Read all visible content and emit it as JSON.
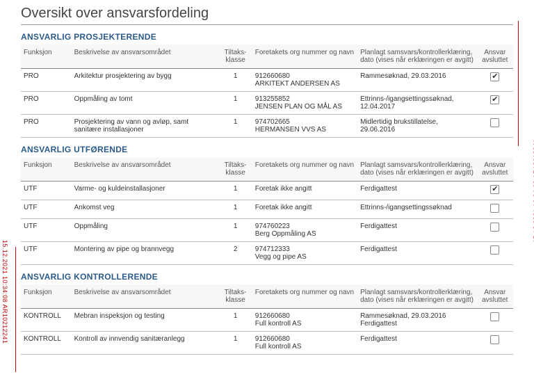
{
  "page": {
    "title": "Oversikt over ansvarsfordeling"
  },
  "stamp": "15.12.2021 10:34:08 AR10212241",
  "headers": {
    "funksjon": "Funksjon",
    "beskrivelse": "Beskrivelse av ansvarsområdet",
    "tiltaksklasse": "Tiltaks-klasse",
    "org": "Foretakets org nummer og navn",
    "planlagt": "Planlagt samsvars/kontrollerklæring, dato (vises når erklæringen er avgitt)",
    "ansvar": "Ansvar avsluttet"
  },
  "sections": [
    {
      "title": "ANSVARLIG PROSJEKTERENDE",
      "rows": [
        {
          "funksjon": "PRO",
          "beskrivelse": "Arkitektur prosjektering av bygg",
          "tiltaksklasse": "1",
          "org_nr": "912660680",
          "org_navn": "ARKITEKT ANDERSEN AS",
          "planlagt": "Rammesøknad, 29.03.2016",
          "avsluttet": true
        },
        {
          "funksjon": "PRO",
          "beskrivelse": "Oppmåling av tomt",
          "tiltaksklasse": "1",
          "org_nr": "913255852",
          "org_navn": "JENSEN PLAN OG MÅL AS",
          "planlagt": "Ettrinns-/igangsettingssøknad, 12.04.2017",
          "avsluttet": true
        },
        {
          "funksjon": "PRO",
          "beskrivelse": "Prosjektering av vann og avløp, samt sanitære installasjoner",
          "tiltaksklasse": "1",
          "org_nr": "974702665",
          "org_navn": "HERMANSEN VVS AS",
          "planlagt": "Midlertidig brukstillatelse, 29.06.2016",
          "avsluttet": false
        }
      ]
    },
    {
      "title": "ANSVARLIG UTFØRENDE",
      "rows": [
        {
          "funksjon": "UTF",
          "beskrivelse": "Varme- og kuldeinstallasjoner",
          "tiltaksklasse": "1",
          "org_nr": "",
          "org_navn": "Foretak ikke angitt",
          "planlagt": "Ferdigattest",
          "avsluttet": true
        },
        {
          "funksjon": "UTF",
          "beskrivelse": "Ankomst veg",
          "tiltaksklasse": "1",
          "org_nr": "",
          "org_navn": "Foretak ikke angitt",
          "planlagt": "Ettrinns-/igangsettingssøknad",
          "avsluttet": false
        },
        {
          "funksjon": "UTF",
          "beskrivelse": "Oppmåling",
          "tiltaksklasse": "1",
          "org_nr": "974760223",
          "org_navn": "Berg Oppmåling AS",
          "planlagt": "Ferdigattest",
          "avsluttet": false
        },
        {
          "funksjon": "UTF",
          "beskrivelse": "Montering av pipe og brannvegg",
          "tiltaksklasse": "2",
          "org_nr": "974712333",
          "org_navn": "Vegg og pipe AS",
          "planlagt": "Ferdigattest",
          "avsluttet": false
        }
      ]
    },
    {
      "title": "ANSVARLIG KONTROLLERENDE",
      "rows": [
        {
          "funksjon": "KONTROLL",
          "beskrivelse": "Mebran inspeksjon og testing",
          "tiltaksklasse": "1",
          "org_nr": "912660680",
          "org_navn": "Full kontroll AS",
          "planlagt": "Rammesøknad, 29.03.2016 Ferdigattest",
          "avsluttet": false
        },
        {
          "funksjon": "KONTROLL",
          "beskrivelse": "Kontroll av innvendig sanitæranlegg",
          "tiltaksklasse": "1",
          "org_nr": "912660680",
          "org_navn": "Full kontroll AS",
          "planlagt": "Ferdigattest",
          "avsluttet": false
        }
      ]
    }
  ]
}
